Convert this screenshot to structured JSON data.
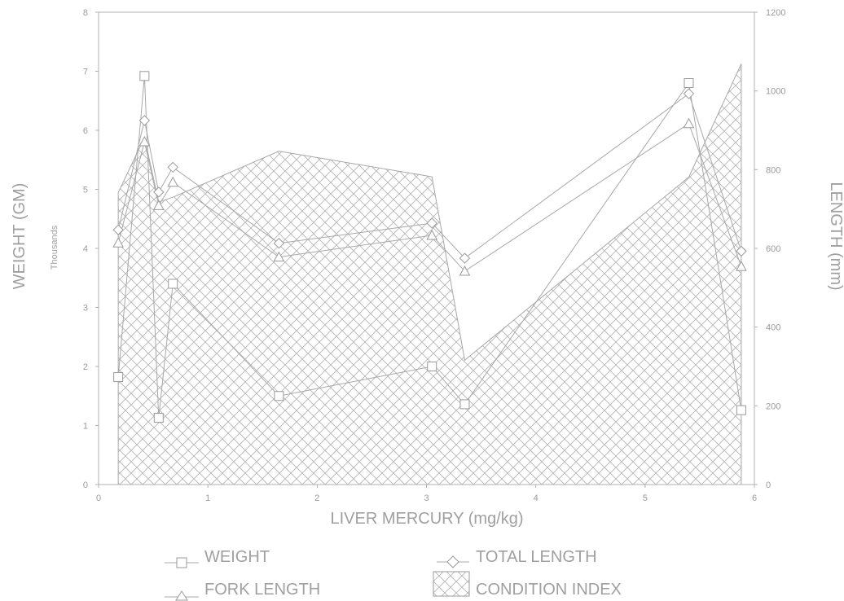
{
  "chart_data": {
    "type": "line",
    "xlabel": "LIVER MERCURY (mg/kg)",
    "ylabel_left": "WEIGHT (GM)",
    "ylabel_left_unit": "Thousands",
    "ylabel_right": "LENGTH (mm)",
    "xlim": [
      0,
      6
    ],
    "ylim_left": [
      0,
      8
    ],
    "ylim_right": [
      0,
      1200
    ],
    "x_ticks": [
      0,
      1,
      2,
      3,
      4,
      5,
      6
    ],
    "y_left_ticks": [
      0,
      1,
      2,
      3,
      4,
      5,
      6,
      7,
      8
    ],
    "y_right_ticks": [
      0,
      200,
      400,
      600,
      800,
      1000,
      1200
    ],
    "grid": false,
    "legend_position": "bottom",
    "series": [
      {
        "name": "WEIGHT",
        "axis": "left",
        "marker": "square",
        "x": [
          0.18,
          0.42,
          0.55,
          0.68,
          1.65,
          3.05,
          3.35,
          5.4,
          5.88
        ],
        "y": [
          1.82,
          6.92,
          1.13,
          3.4,
          1.5,
          2.0,
          1.36,
          6.8,
          1.26
        ]
      },
      {
        "name": "TOTAL LENGTH",
        "axis": "right",
        "marker": "diamond",
        "x": [
          0.18,
          0.42,
          0.55,
          0.68,
          1.65,
          3.05,
          3.35,
          5.4,
          5.88
        ],
        "y": [
          647,
          925,
          743,
          806,
          613,
          664,
          575,
          993,
          593
        ]
      },
      {
        "name": "FORK LENGTH",
        "axis": "right",
        "marker": "triangle",
        "x": [
          0.18,
          0.42,
          0.55,
          0.68,
          1.65,
          3.05,
          3.35,
          5.4,
          5.88
        ],
        "y": [
          614,
          871,
          709,
          768,
          578,
          633,
          542,
          917,
          554
        ]
      },
      {
        "name": "CONDITION INDEX",
        "axis": "right",
        "style": "crosshatch-area",
        "x": [
          0.18,
          0.42,
          0.55,
          0.68,
          1.65,
          3.05,
          3.35,
          5.4,
          5.88
        ],
        "y": [
          742,
          882,
          718,
          730,
          847,
          782,
          316,
          781,
          1069
        ]
      }
    ]
  }
}
